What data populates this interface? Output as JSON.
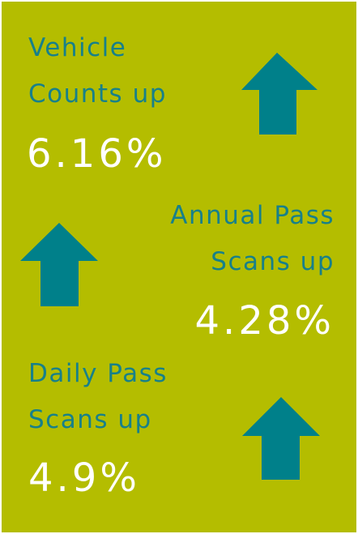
{
  "items": [
    {
      "lines": [
        "Vehicle",
        "Counts up"
      ],
      "value": "6.16%"
    },
    {
      "lines": [
        "Annual Pass",
        "Scans up"
      ],
      "value": "4.28%"
    },
    {
      "lines": [
        "Daily Pass",
        "Scans up"
      ],
      "value": "4.9%"
    }
  ]
}
